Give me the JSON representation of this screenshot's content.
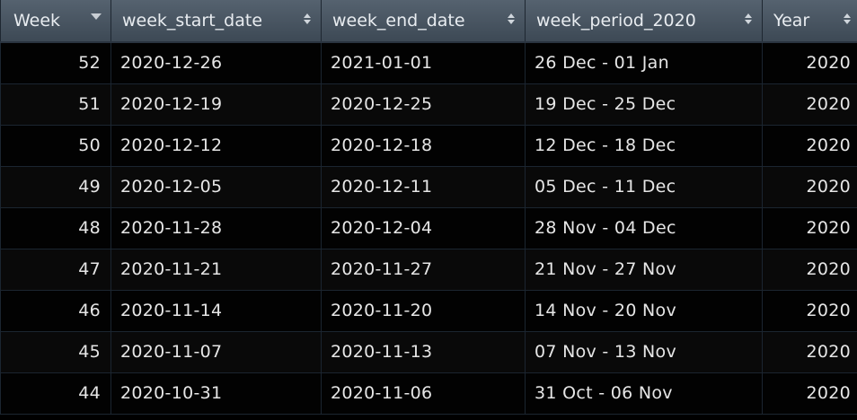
{
  "columns": [
    {
      "label": "Week",
      "sort": "desc"
    },
    {
      "label": "week_start_date",
      "sort": "none"
    },
    {
      "label": "week_end_date",
      "sort": "none"
    },
    {
      "label": "week_period_2020",
      "sort": "none"
    },
    {
      "label": "Year",
      "sort": "none"
    }
  ],
  "rows": [
    [
      "52",
      "2020-12-26",
      "2021-01-01",
      "26 Dec - 01 Jan",
      "2020"
    ],
    [
      "51",
      "2020-12-19",
      "2020-12-25",
      "19 Dec - 25 Dec",
      "2020"
    ],
    [
      "50",
      "2020-12-12",
      "2020-12-18",
      "12 Dec - 18 Dec",
      "2020"
    ],
    [
      "49",
      "2020-12-05",
      "2020-12-11",
      "05 Dec - 11 Dec",
      "2020"
    ],
    [
      "48",
      "2020-11-28",
      "2020-12-04",
      "28 Nov - 04 Dec",
      "2020"
    ],
    [
      "47",
      "2020-11-21",
      "2020-11-27",
      "21 Nov - 27 Nov",
      "2020"
    ],
    [
      "46",
      "2020-11-14",
      "2020-11-20",
      "14 Nov - 20 Nov",
      "2020"
    ],
    [
      "45",
      "2020-11-07",
      "2020-11-13",
      "07 Nov - 13 Nov",
      "2020"
    ],
    [
      "44",
      "2020-10-31",
      "2020-11-06",
      "31 Oct - 06 Nov",
      "2020"
    ]
  ],
  "colors": {
    "header_bg": "#4a5663",
    "header_text": "#e8ecf0",
    "cell_bg": "#050505",
    "cell_text": "#e6e6e6",
    "grid_line": "#1b2530"
  },
  "icons": {
    "sort_active": "sort-descending-icon",
    "sort_inactive": "sort-both-icon"
  }
}
